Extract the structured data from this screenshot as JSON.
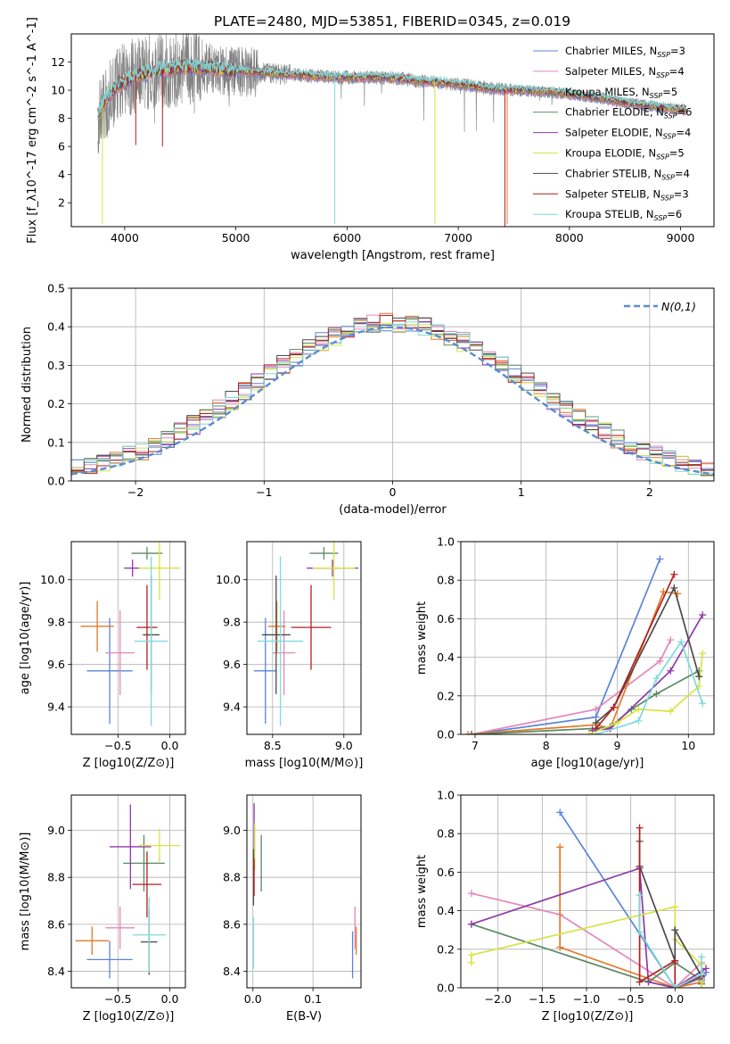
{
  "figure": {
    "title": "PLATE=2480, MJD=53851, FIBERID=0345, z=0.019"
  },
  "colors": {
    "Chabrier MILES": "#5b84d6",
    "Salpeter MILES": "#e487b8",
    "Kroupa MILES": "#e27a28",
    "Chabrier ELODIE": "#5b8a62",
    "Salpeter ELODIE": "#8f3aa8",
    "Kroupa ELODIE": "#d6e443",
    "Chabrier STELIB": "#4a4a4a",
    "Salpeter STELIB": "#b41f24",
    "Kroupa STELIB": "#7fdada",
    "data": "#808080"
  },
  "chart_data": [
    {
      "id": "spectrum",
      "type": "line",
      "xlabel": "wavelength [Angstrom, rest frame]",
      "ylabel": "Flux [f_λ10^-17 erg cm^-2 s^-1 A^-1]",
      "xlim": [
        3520,
        9300
      ],
      "ylim": [
        0.3,
        14
      ],
      "xticks": [
        4000,
        5000,
        6000,
        7000,
        8000,
        9000
      ],
      "yticks": [
        2,
        4,
        6,
        8,
        10,
        12
      ],
      "grid": false,
      "legend": "upper right",
      "legend_entries": [
        {
          "label": "Chabrier MILES, N",
          "nssp": "3",
          "model": "Chabrier MILES"
        },
        {
          "label": "Salpeter MILES, N",
          "nssp": "4",
          "model": "Salpeter MILES"
        },
        {
          "label": "Kroupa MILES, N",
          "nssp": "5",
          "model": "Kroupa MILES"
        },
        {
          "label": "Chabrier ELODIE, N",
          "nssp": "6",
          "model": "Chabrier ELODIE"
        },
        {
          "label": "Salpeter ELODIE, N",
          "nssp": "4",
          "model": "Salpeter ELODIE"
        },
        {
          "label": "Kroupa ELODIE, N",
          "nssp": "5",
          "model": "Kroupa ELODIE"
        },
        {
          "label": "Chabrier STELIB, N",
          "nssp": "4",
          "model": "Chabrier STELIB"
        },
        {
          "label": "Salpeter STELIB, N",
          "nssp": "3",
          "model": "Salpeter STELIB"
        },
        {
          "label": "Kroupa STELIB, N",
          "nssp": "6",
          "model": "Kroupa STELIB"
        }
      ],
      "continuum": {
        "x": [
          3760,
          3850,
          3950,
          4100,
          4300,
          4500,
          4700,
          4900,
          5100,
          5300,
          5500,
          5700,
          5900,
          6100,
          6300,
          6500,
          6700,
          6900,
          7100,
          7300,
          7500,
          7700,
          7900,
          8100,
          8300,
          8500,
          8700,
          8900,
          9050
        ],
        "y": [
          8.3,
          9.6,
          10.4,
          11.0,
          11.4,
          11.6,
          11.6,
          11.4,
          11.3,
          11.2,
          11.1,
          11.0,
          10.9,
          10.9,
          10.9,
          10.8,
          10.6,
          10.5,
          10.3,
          10.1,
          10.0,
          9.9,
          9.8,
          9.6,
          9.4,
          9.1,
          8.9,
          8.7,
          8.6
        ]
      },
      "drops": [
        {
          "model": "Kroupa STELIB",
          "x": 5890,
          "y": 0.5
        },
        {
          "model": "Kroupa ELODIE",
          "x": 6790,
          "y": 0.5
        },
        {
          "model": "Salpeter STELIB",
          "x": 7420,
          "y": 0.3
        },
        {
          "model": "Kroupa MILES",
          "x": 7440,
          "y": 0.5
        },
        {
          "model": "Kroupa ELODIE",
          "x": 3800,
          "y": 0.5
        },
        {
          "model": "Salpeter STELIB",
          "x": 4100,
          "y": 6.1
        },
        {
          "model": "Salpeter STELIB",
          "x": 4340,
          "y": 6.0
        }
      ]
    },
    {
      "id": "residuals",
      "type": "histogram",
      "xlabel": "(data-model)/error",
      "ylabel": "Normed distribution",
      "xlim": [
        -2.5,
        2.5
      ],
      "ylim": [
        0,
        0.5
      ],
      "xticks": [
        -2,
        -1,
        0,
        1,
        2
      ],
      "yticks": [
        0.0,
        0.1,
        0.2,
        0.3,
        0.4,
        0.5
      ],
      "grid": true,
      "legend": "upper right",
      "gaussian_label": "N(0,1)",
      "gaussian_color": "#5b8bd0",
      "bin_width": 0.1,
      "bin_start": -2.5
    },
    {
      "id": "age-vs-Z",
      "type": "errorbar",
      "xlabel": "Z [log10(Z/Z⊙)]",
      "ylabel": "age  [log10(age/yr)]",
      "xlim": [
        -0.95,
        0.15
      ],
      "ylim": [
        9.27,
        10.18
      ],
      "xticks": [
        -0.5,
        0.0
      ],
      "yticks": [
        9.4,
        9.6,
        9.8,
        10.0
      ],
      "grid": true,
      "points": [
        {
          "model": "Chabrier MILES",
          "x": -0.58,
          "xerr": 0.22,
          "y": 9.57,
          "yerr": 0.25
        },
        {
          "model": "Salpeter MILES",
          "x": -0.48,
          "xerr": 0.14,
          "y": 9.655,
          "yerr": 0.2
        },
        {
          "model": "Kroupa MILES",
          "x": -0.7,
          "xerr": 0.16,
          "y": 9.78,
          "yerr": 0.12
        },
        {
          "model": "Chabrier ELODIE",
          "x": -0.22,
          "xerr": 0.15,
          "y": 10.125,
          "yerr": 0.03
        },
        {
          "model": "Salpeter ELODIE",
          "x": -0.36,
          "xerr": 0.08,
          "y": 10.055,
          "yerr": 0.04
        },
        {
          "model": "Kroupa ELODIE",
          "x": -0.1,
          "xerr": 0.2,
          "y": 10.055,
          "yerr": 0.15
        },
        {
          "model": "Chabrier STELIB",
          "x": -0.18,
          "xerr": 0.08,
          "y": 9.74,
          "yerr": 0.28
        },
        {
          "model": "Salpeter STELIB",
          "x": -0.22,
          "xerr": 0.1,
          "y": 9.775,
          "yerr": 0.2
        },
        {
          "model": "Kroupa STELIB",
          "x": -0.18,
          "xerr": 0.16,
          "y": 9.71,
          "yerr": 0.4
        }
      ]
    },
    {
      "id": "age-vs-mass",
      "type": "errorbar",
      "xlabel": "mass [log10(M/M⊙)]",
      "ylabel": "",
      "xlim": [
        8.32,
        9.12
      ],
      "ylim": [
        9.27,
        10.18
      ],
      "xticks": [
        8.5,
        9.0
      ],
      "yticks": [
        9.4,
        9.6,
        9.8,
        10.0
      ],
      "grid": true,
      "points": [
        {
          "model": "Chabrier MILES",
          "x": 8.45,
          "xerr": 0.08,
          "y": 9.57,
          "yerr": 0.25
        },
        {
          "model": "Salpeter MILES",
          "x": 8.58,
          "xerr": 0.08,
          "y": 9.655,
          "yerr": 0.2
        },
        {
          "model": "Kroupa MILES",
          "x": 8.53,
          "xerr": 0.06,
          "y": 9.78,
          "yerr": 0.12
        },
        {
          "model": "Chabrier ELODIE",
          "x": 8.86,
          "xerr": 0.1,
          "y": 10.125,
          "yerr": 0.03
        },
        {
          "model": "Salpeter ELODIE",
          "x": 8.92,
          "xerr": 0.18,
          "y": 10.055,
          "yerr": 0.04
        },
        {
          "model": "Kroupa ELODIE",
          "x": 8.93,
          "xerr": 0.15,
          "y": 10.055,
          "yerr": 0.15
        },
        {
          "model": "Chabrier STELIB",
          "x": 8.525,
          "xerr": 0.1,
          "y": 9.74,
          "yerr": 0.28
        },
        {
          "model": "Salpeter STELIB",
          "x": 8.77,
          "xerr": 0.14,
          "y": 9.775,
          "yerr": 0.2
        },
        {
          "model": "Kroupa STELIB",
          "x": 8.555,
          "xerr": 0.16,
          "y": 9.71,
          "yerr": 0.4
        }
      ]
    },
    {
      "id": "weight-vs-age",
      "type": "line",
      "xlabel": "age  [log10(age/yr)]",
      "ylabel": "mass weight",
      "xlim": [
        6.8,
        10.36
      ],
      "ylim": [
        0,
        1.0
      ],
      "xticks": [
        7,
        8,
        9,
        10
      ],
      "yticks": [
        0.0,
        0.2,
        0.4,
        0.6,
        0.8,
        1.0
      ],
      "grid": true,
      "series": [
        {
          "model": "Chabrier MILES",
          "x": [
            6.95,
            8.7,
            9.6
          ],
          "y": [
            0.0,
            0.09,
            0.91
          ]
        },
        {
          "model": "Salpeter MILES",
          "x": [
            6.95,
            8.7,
            9.6,
            9.75
          ],
          "y": [
            0.0,
            0.13,
            0.38,
            0.49
          ]
        },
        {
          "model": "Kroupa MILES",
          "x": [
            6.9,
            8.7,
            8.9,
            9.65,
            9.85
          ],
          "y": [
            0.0,
            0.05,
            0.03,
            0.74,
            0.73
          ]
        },
        {
          "model": "Chabrier ELODIE",
          "x": [
            6.95,
            8.65,
            8.9,
            9.2,
            9.55,
            10.15
          ],
          "y": [
            0.0,
            0.03,
            0.04,
            0.13,
            0.21,
            0.33
          ]
        },
        {
          "model": "Salpeter ELODIE",
          "x": [
            8.65,
            8.9,
            9.75,
            10.2
          ],
          "y": [
            0.02,
            0.03,
            0.33,
            0.62
          ]
        },
        {
          "model": "Kroupa ELODIE",
          "x": [
            8.6,
            9.0,
            9.3,
            9.75,
            10.15,
            10.2
          ],
          "y": [
            0.0,
            0.06,
            0.13,
            0.12,
            0.25,
            0.42
          ]
        },
        {
          "model": "Chabrier STELIB",
          "x": [
            8.7,
            8.95,
            9.8,
            10.15
          ],
          "y": [
            0.06,
            0.14,
            0.76,
            0.3
          ]
        },
        {
          "model": "Salpeter STELIB",
          "x": [
            8.7,
            8.95,
            9.8
          ],
          "y": [
            0.03,
            0.14,
            0.83
          ]
        },
        {
          "model": "Kroupa STELIB",
          "x": [
            8.7,
            9.3,
            9.55,
            9.9,
            10.2
          ],
          "y": [
            0.0,
            0.07,
            0.29,
            0.48,
            0.16
          ]
        }
      ]
    },
    {
      "id": "mass-vs-Z",
      "type": "errorbar",
      "xlabel": "Z [log10(Z/Z⊙)]",
      "ylabel": "mass [log10(M/M⊙)]",
      "xlim": [
        -0.95,
        0.15
      ],
      "ylim": [
        8.33,
        9.15
      ],
      "xticks": [
        -0.5,
        0.0
      ],
      "yticks": [
        8.4,
        8.6,
        8.8,
        9.0
      ],
      "grid": true,
      "points": [
        {
          "model": "Chabrier MILES",
          "x": -0.58,
          "xerr": 0.22,
          "y": 8.45,
          "yerr": 0.08
        },
        {
          "model": "Salpeter MILES",
          "x": -0.48,
          "xerr": 0.14,
          "y": 8.585,
          "yerr": 0.09
        },
        {
          "model": "Kroupa MILES",
          "x": -0.75,
          "xerr": 0.16,
          "y": 8.53,
          "yerr": 0.06
        },
        {
          "model": "Chabrier ELODIE",
          "x": -0.25,
          "xerr": 0.2,
          "y": 8.86,
          "yerr": 0.12
        },
        {
          "model": "Salpeter ELODIE",
          "x": -0.38,
          "xerr": 0.2,
          "y": 8.93,
          "yerr": 0.18
        },
        {
          "model": "Kroupa ELODIE",
          "x": -0.1,
          "xerr": 0.2,
          "y": 8.935,
          "yerr": 0.07
        },
        {
          "model": "Chabrier STELIB",
          "x": -0.2,
          "xerr": 0.08,
          "y": 8.525,
          "yerr": 0.14
        },
        {
          "model": "Salpeter STELIB",
          "x": -0.22,
          "xerr": 0.14,
          "y": 8.77,
          "yerr": 0.14
        },
        {
          "model": "Kroupa STELIB",
          "x": -0.2,
          "xerr": 0.16,
          "y": 8.555,
          "yerr": 0.16
        }
      ]
    },
    {
      "id": "mass-vs-EBV",
      "type": "errorbar",
      "xlabel": "E(B-V)",
      "ylabel": "",
      "xlim": [
        -0.01,
        0.18
      ],
      "ylim": [
        8.33,
        9.15
      ],
      "xticks": [
        0.0,
        0.1
      ],
      "yticks": [
        8.4,
        8.6,
        8.8,
        9.0
      ],
      "grid": true,
      "points": [
        {
          "model": "Chabrier MILES",
          "x": 0.166,
          "xerr": 0,
          "y": 8.47,
          "yerr": 0.1
        },
        {
          "model": "Salpeter MILES",
          "x": 0.17,
          "xerr": 0,
          "y": 8.585,
          "yerr": 0.09
        },
        {
          "model": "Kroupa MILES",
          "x": 0.172,
          "xerr": 0,
          "y": 8.53,
          "yerr": 0.06
        },
        {
          "model": "Chabrier ELODIE",
          "x": 0.014,
          "xerr": 0,
          "y": 8.86,
          "yerr": 0.12
        },
        {
          "model": "Salpeter ELODIE",
          "x": 0.002,
          "xerr": 0,
          "y": 8.995,
          "yerr": 0.12
        },
        {
          "model": "Kroupa ELODIE",
          "x": 0.003,
          "xerr": 0,
          "y": 8.93,
          "yerr": 0.1
        },
        {
          "model": "Chabrier STELIB",
          "x": 0.001,
          "xerr": 0,
          "y": 8.8,
          "yerr": 0.12
        },
        {
          "model": "Salpeter STELIB",
          "x": 0.002,
          "xerr": 0,
          "y": 8.8,
          "yerr": 0.08
        },
        {
          "model": "Kroupa STELIB",
          "x": 0.001,
          "xerr": 0,
          "y": 8.52,
          "yerr": 0.11
        }
      ]
    },
    {
      "id": "weight-vs-Z",
      "type": "line",
      "xlabel": "Z [log10(Z/Z⊙)]",
      "ylabel": "mass weight",
      "xlim": [
        -2.42,
        0.44
      ],
      "ylim": [
        0,
        1.0
      ],
      "xticks": [
        -2.0,
        -1.5,
        -1.0,
        -0.5,
        0.0
      ],
      "yticks": [
        0.0,
        0.2,
        0.4,
        0.6,
        0.8,
        1.0
      ],
      "grid": true,
      "series": [
        {
          "model": "Chabrier MILES",
          "x": [
            -1.3,
            0.0,
            0.3,
            0.35
          ],
          "y": [
            0.91,
            0.0,
            0.05,
            0.08
          ]
        },
        {
          "model": "Salpeter MILES",
          "x": [
            -2.3,
            -1.3,
            0.0,
            0.3
          ],
          "y": [
            0.49,
            0.38,
            0.0,
            0.13
          ]
        },
        {
          "model": "Kroupa MILES",
          "x": [
            -1.3,
            -1.3,
            0.0,
            0.3
          ],
          "y": [
            0.73,
            0.21,
            0.0,
            0.03
          ]
        },
        {
          "model": "Chabrier ELODIE",
          "x": [
            -2.3,
            -0.3,
            0.0,
            0.3,
            0.3
          ],
          "y": [
            0.33,
            0.03,
            0.13,
            0.04,
            0.02
          ]
        },
        {
          "model": "Salpeter ELODIE",
          "x": [
            -2.3,
            -0.4,
            -0.3,
            0.0,
            0.35
          ],
          "y": [
            0.33,
            0.62,
            0.03,
            0.0,
            0.1
          ]
        },
        {
          "model": "Kroupa ELODIE",
          "x": [
            -2.3,
            -2.3,
            0.0,
            0.0,
            0.3,
            0.3
          ],
          "y": [
            0.13,
            0.17,
            0.42,
            0.25,
            0.12,
            0.0
          ]
        },
        {
          "model": "Chabrier STELIB",
          "x": [
            -0.4,
            -0.4,
            0.0,
            0.0,
            0.3
          ],
          "y": [
            0.76,
            0.63,
            0.14,
            0.3,
            0.06
          ]
        },
        {
          "model": "Salpeter STELIB",
          "x": [
            -0.4,
            -0.4,
            0.0,
            0.0,
            0.3
          ],
          "y": [
            0.83,
            0.03,
            0.14,
            0.0,
            0.06
          ]
        },
        {
          "model": "Kroupa STELIB",
          "x": [
            -0.4,
            -0.4,
            0.0,
            0.3,
            0.3
          ],
          "y": [
            0.48,
            0.29,
            0.0,
            0.07,
            0.16
          ]
        }
      ]
    }
  ]
}
